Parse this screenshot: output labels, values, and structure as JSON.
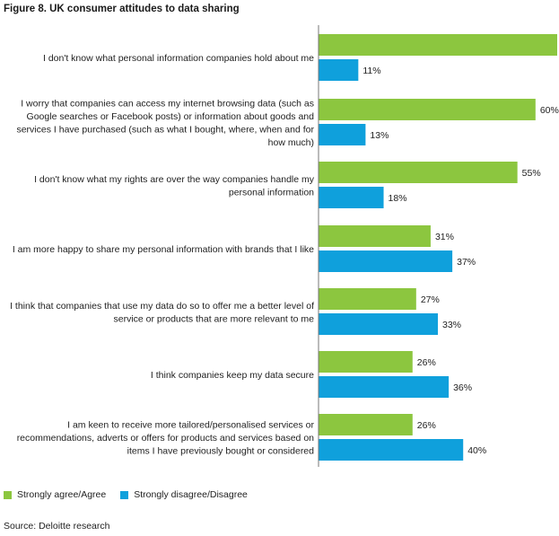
{
  "title": "Figure 8. UK consumer attitudes to data sharing",
  "source": "Source: Deloitte research",
  "colors": {
    "agree": "#8cc63f",
    "disagree": "#0fa0dc",
    "axis": "#777777"
  },
  "legend": {
    "agree": "Strongly agree/Agree",
    "disagree": "Strongly disagree/Disagree"
  },
  "chart_data": {
    "type": "bar",
    "orientation": "horizontal",
    "title": "Figure 8. UK consumer attitudes to data sharing",
    "xlim": [
      0,
      70
    ],
    "grid": false,
    "legend_position": "bottom-left",
    "categories": [
      [
        "I don't know what personal information companies hold about me"
      ],
      [
        "I worry that companies can access my internet browsing data (such as",
        "Google searches or Facebook posts) or information about goods and",
        "services I have purchased (such as what I bought, where, when and for",
        "how much)"
      ],
      [
        "I don't know what my rights are over the way companies handle my",
        "personal information"
      ],
      [
        "I am more happy to share my personal information with brands that I like"
      ],
      [
        "I think that companies that use my data do so to offer me a better level of",
        "service or products that are more relevant to me"
      ],
      [
        "I think companies keep my data secure"
      ],
      [
        "I am keen to receive more tailored/personalised services or",
        "recommendations, adverts or offers for products and services based on",
        "items I have previously bought or considered"
      ]
    ],
    "series": [
      {
        "name": "Strongly agree/Agree",
        "values": [
          66,
          60,
          55,
          31,
          27,
          26,
          26
        ]
      },
      {
        "name": "Strongly disagree/Disagree",
        "values": [
          11,
          13,
          18,
          37,
          33,
          36,
          40
        ]
      }
    ],
    "value_suffix": "%"
  }
}
